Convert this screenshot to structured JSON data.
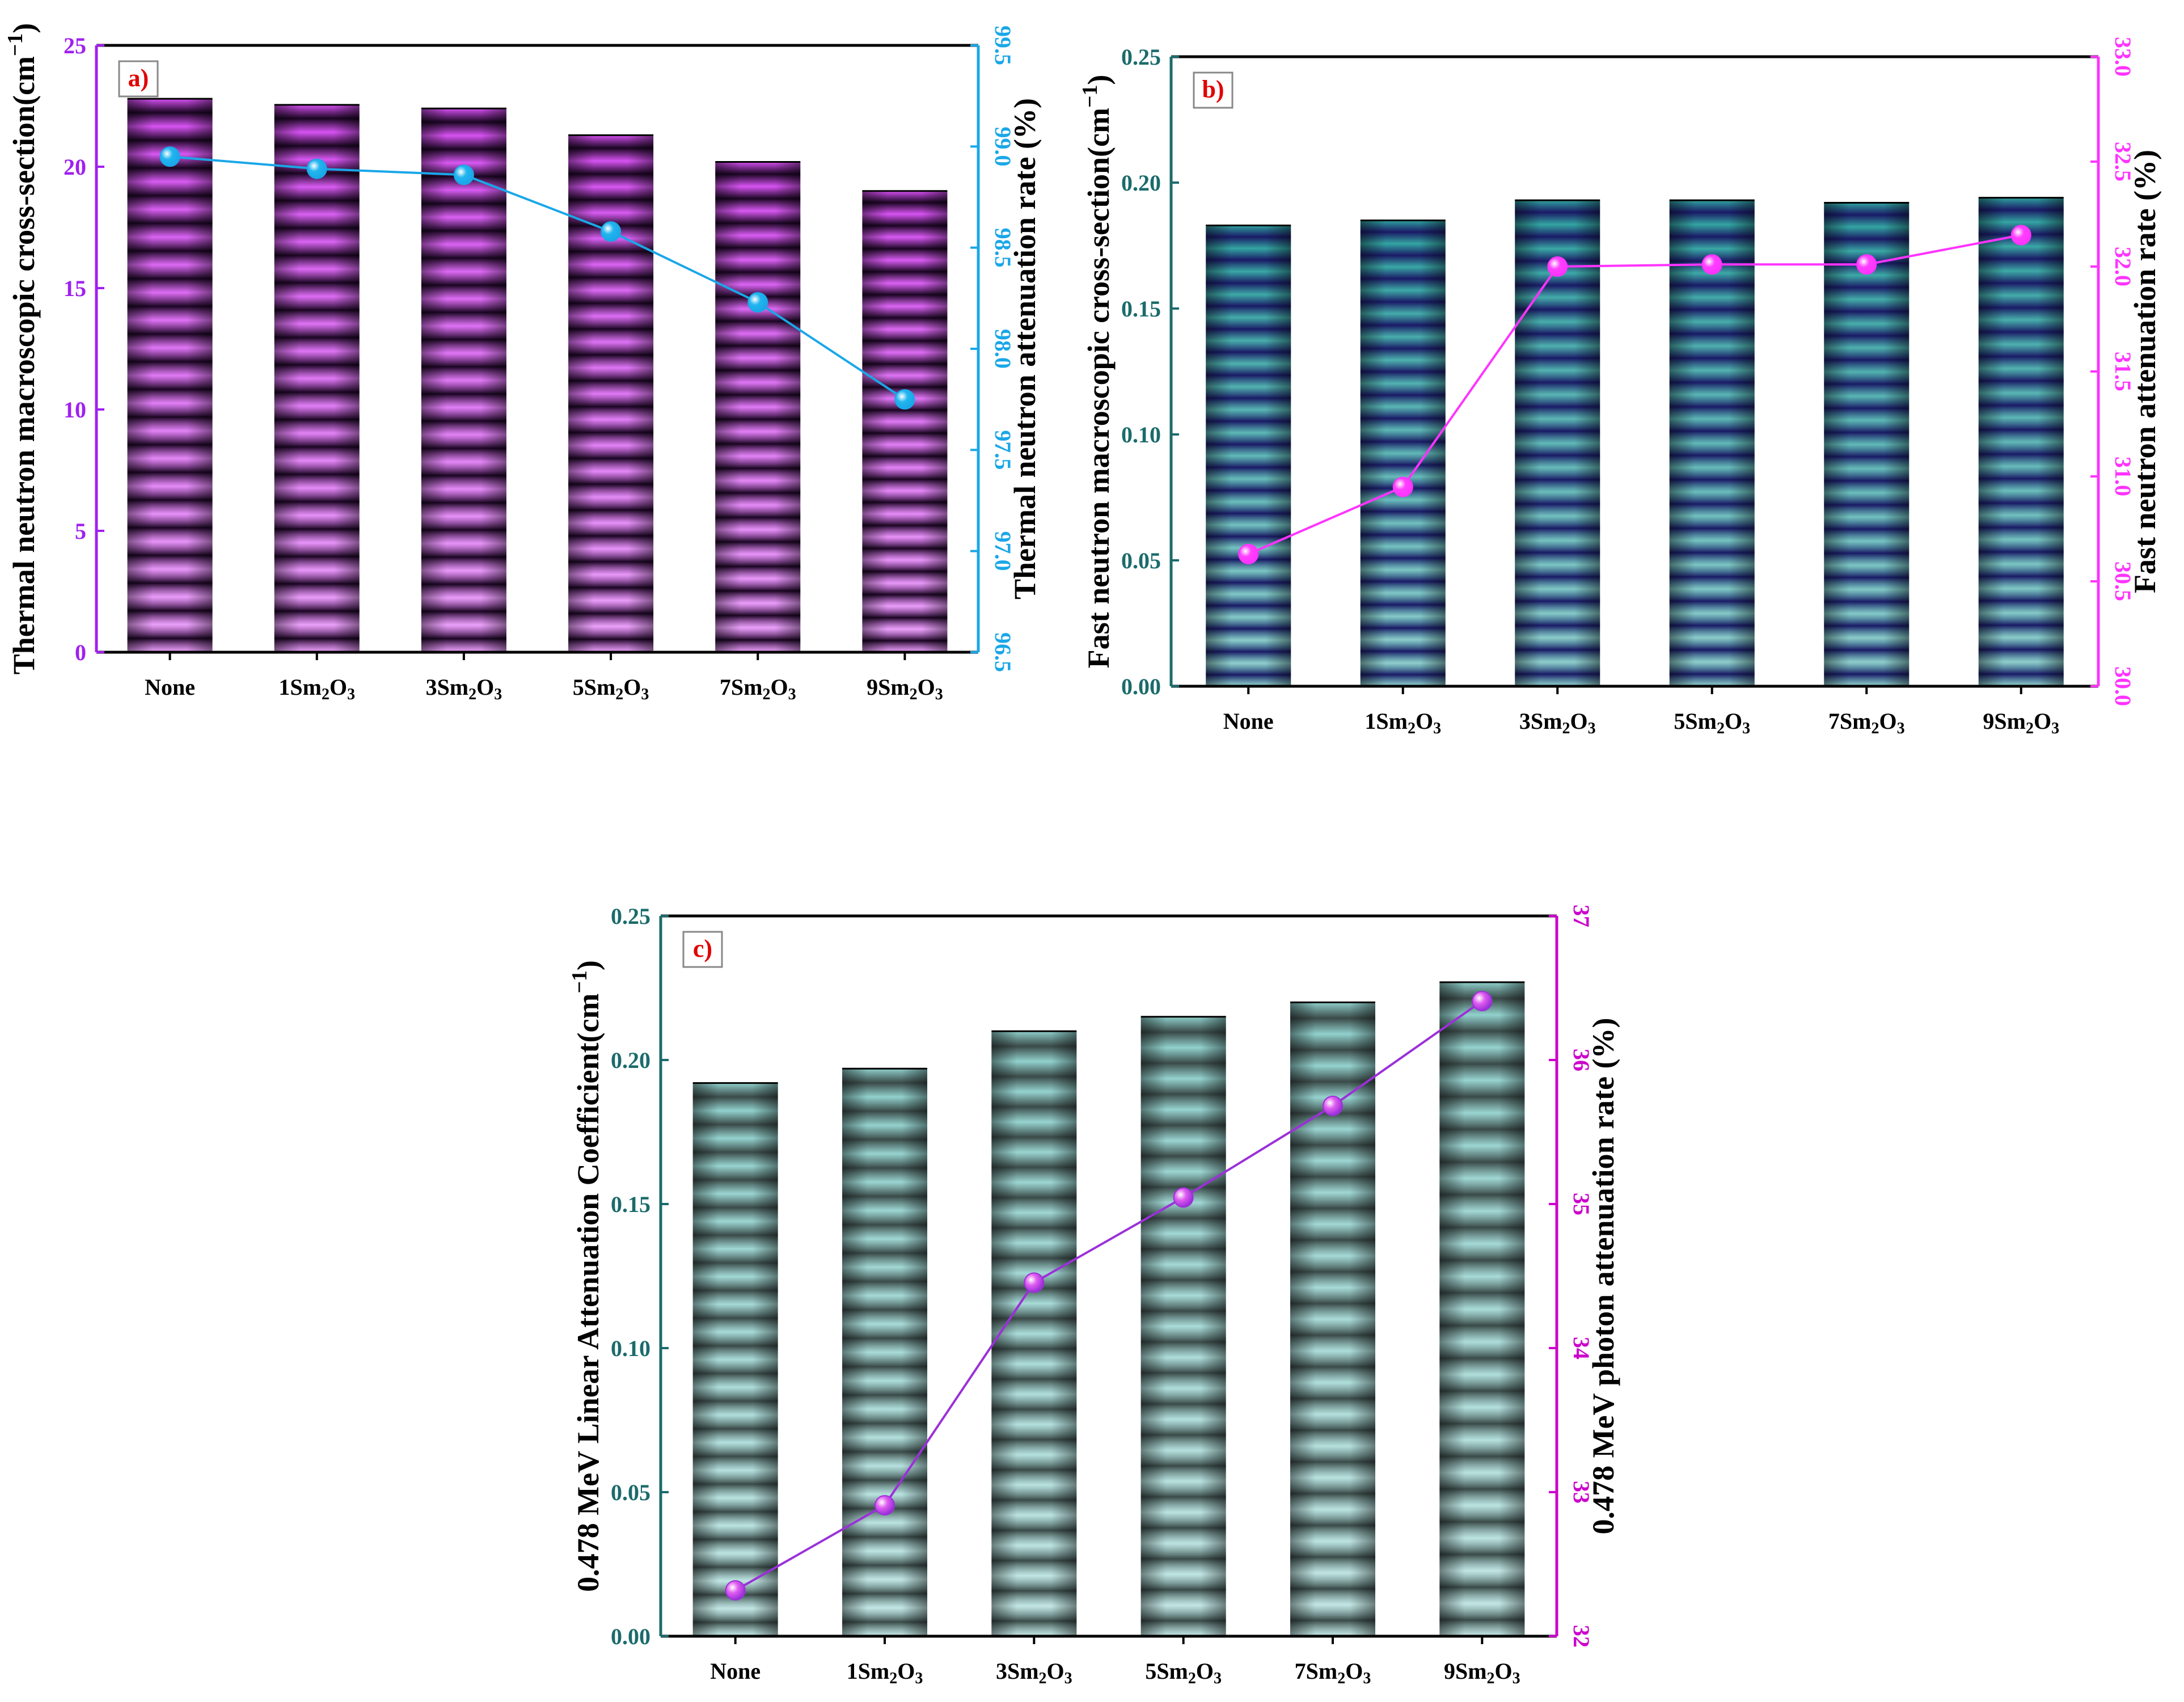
{
  "figure": {
    "panels": [
      "a)",
      "b)",
      "c)"
    ]
  },
  "chart_data": [
    {
      "type": "bar",
      "panel_label": "a)",
      "categories": [
        "None",
        "1Sm2O3",
        "3Sm2O3",
        "5Sm2O3",
        "7Sm2O3",
        "9Sm2O3"
      ],
      "category_sub": [
        null,
        [
          "1Sm",
          "2",
          "O",
          "3"
        ],
        [
          "3Sm",
          "2",
          "O",
          "3"
        ],
        [
          "5Sm",
          "2",
          "O",
          "3"
        ],
        [
          "7Sm",
          "2",
          "O",
          "3"
        ],
        [
          "9Sm",
          "2",
          "O",
          "3"
        ]
      ],
      "ylabel": "Thermal neutron macroscopic cross-section(cm⁻¹)",
      "y2label": "Thermal neutron attenuation  rate (%)",
      "ylim": [
        0,
        25
      ],
      "y2lim": [
        96.5,
        99.5
      ],
      "yticks": [
        "0",
        "5",
        "10",
        "15",
        "20",
        "25"
      ],
      "y2ticks": [
        "96.5",
        "97.0",
        "97.5",
        "98.0",
        "98.5",
        "99.0",
        "99.5"
      ],
      "series": [
        {
          "kind": "bar",
          "values": [
            22.8,
            22.55,
            22.4,
            21.3,
            20.2,
            19.0
          ]
        },
        {
          "kind": "line",
          "axis": "right",
          "values": [
            98.95,
            98.89,
            98.86,
            98.58,
            98.23,
            97.75
          ]
        }
      ],
      "colors": {
        "left_axis": "#a020f0",
        "right_axis": "#1aa7e8",
        "bar_light": "#d64ff2",
        "bar_dark": "#1a0522",
        "line": "#1aa7e8",
        "marker": "#22b5ef"
      },
      "grid": false
    },
    {
      "type": "bar",
      "panel_label": "b)",
      "categories": [
        "None",
        "1Sm2O3",
        "3Sm2O3",
        "5Sm2O3",
        "7Sm2O3",
        "9Sm2O3"
      ],
      "ylabel": "Fast neutron macroscopic cross-section(cm⁻¹)",
      "y2label": "Fast neutron attenuation  rate (%)",
      "ylim": [
        0,
        0.25
      ],
      "y2lim": [
        30.0,
        33.0
      ],
      "yticks": [
        "0.00",
        "0.05",
        "0.10",
        "0.15",
        "0.20",
        "0.25"
      ],
      "y2ticks": [
        "30.0",
        "30.5",
        "31.0",
        "31.5",
        "32.0",
        "32.5",
        "33.0"
      ],
      "series": [
        {
          "kind": "bar",
          "values": [
            0.183,
            0.185,
            0.193,
            0.193,
            0.192,
            0.194
          ]
        },
        {
          "kind": "line",
          "axis": "right",
          "values": [
            30.63,
            30.95,
            32.0,
            32.01,
            32.01,
            32.15
          ]
        }
      ],
      "colors": {
        "left_axis": "#1b6b6b",
        "right_axis": "#ff33ff",
        "bar_light": "#2fa3a0",
        "bar_dark": "#1a1a66",
        "line": "#ff33ff",
        "marker": "#ff40ff"
      },
      "grid": false
    },
    {
      "type": "bar",
      "panel_label": "c)",
      "categories": [
        "None",
        "1Sm2O3",
        "3Sm2O3",
        "5Sm2O3",
        "7Sm2O3",
        "9Sm2O3"
      ],
      "ylabel": "0.478 MeV Linear Attenuation Coefficient(cm⁻¹)",
      "y2label": "0.478 MeV photon attenuation  rate (%)",
      "ylim": [
        0,
        0.25
      ],
      "y2lim": [
        31.5,
        37
      ],
      "yticks": [
        "0.00",
        "0.05",
        "0.10",
        "0.15",
        "0.20",
        "0.25"
      ],
      "y2ticks": [
        "32",
        "33",
        "34",
        "35",
        "36",
        "37"
      ],
      "series": [
        {
          "kind": "bar",
          "values": [
            0.192,
            0.197,
            0.21,
            0.215,
            0.22,
            0.227
          ]
        },
        {
          "kind": "line",
          "axis": "right",
          "values": [
            31.85,
            32.5,
            34.2,
            34.85,
            35.55,
            36.35
          ]
        }
      ],
      "colors": {
        "left_axis": "#1b6b6b",
        "right_axis": "#cc00cc",
        "bar_light": "#8fd0cc",
        "bar_dark": "#3a4a48",
        "line": "#9b30d9",
        "marker": "#e05cf0"
      },
      "grid": false
    }
  ]
}
